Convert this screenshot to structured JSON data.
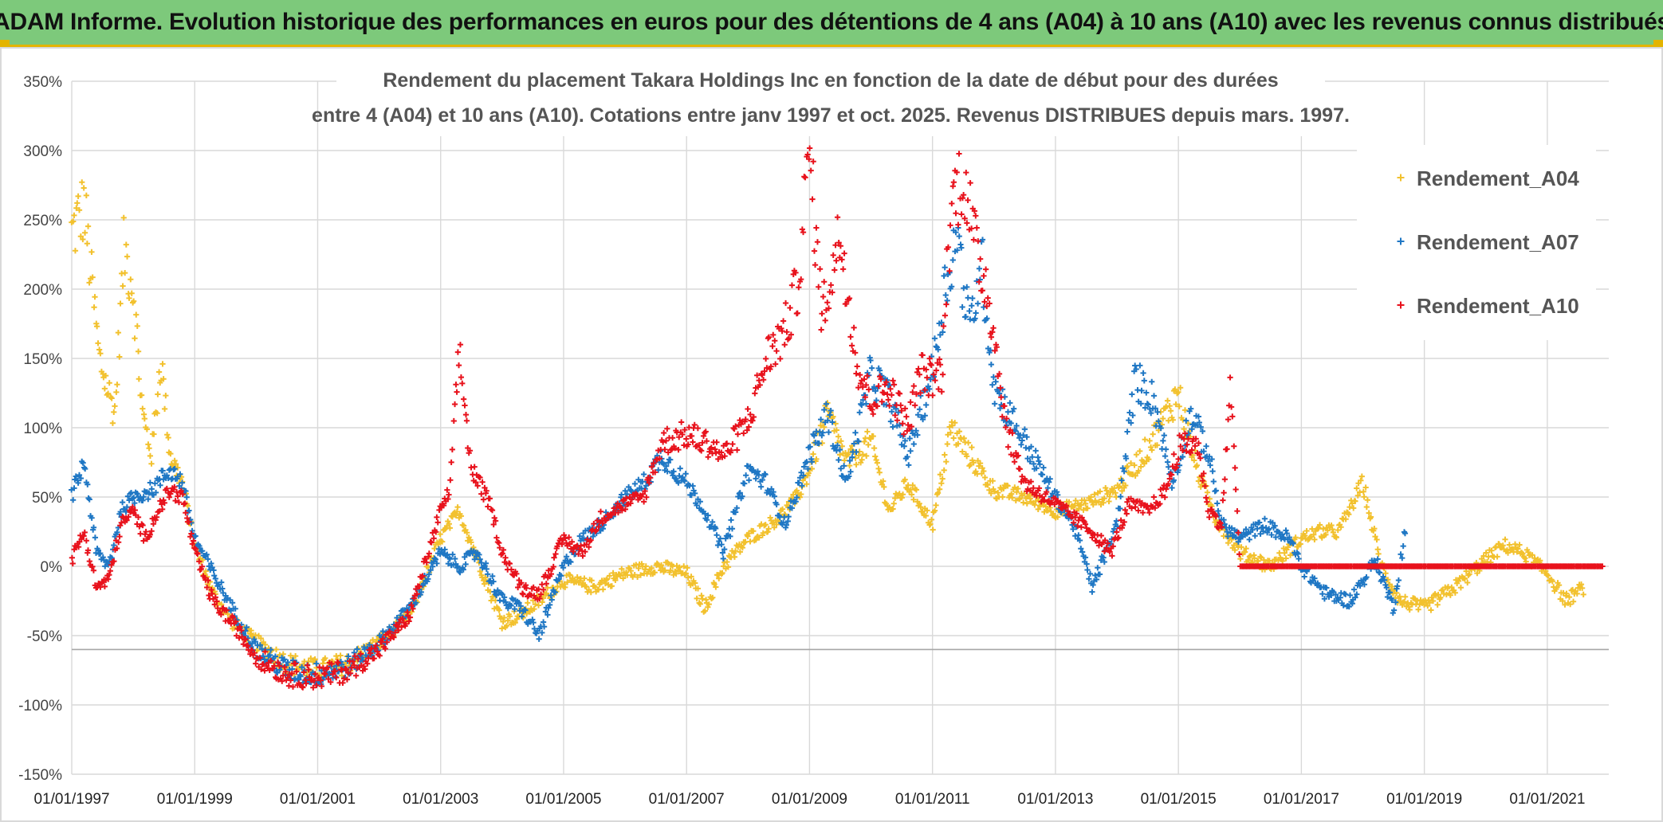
{
  "banner": {
    "title": "ADAM Informe. Evolution historique des performances en euros pour des détentions de 4 ans (A04) à 10 ans (A10) avec les revenus connus distribués"
  },
  "colors": {
    "banner_bg": "#7dc97b",
    "banner_accent": "#e3b400",
    "A04": "#f2c12e",
    "A07": "#1f77c4",
    "A10": "#e8121c",
    "grid": "#d9d9d9"
  },
  "chart_data": {
    "type": "scatter",
    "title_line1": "Rendement du placement Takara Holdings Inc en fonction de la date de début pour des durées",
    "title_line2": "entre 4 (A04) et 10 ans (A10). Cotations entre janv 1997 et oct. 2025. Revenus DISTRIBUES depuis mars. 1997.",
    "xlabel": "",
    "ylabel": "",
    "x_range": [
      "01/01/1997",
      "01/01/2022"
    ],
    "ylim": [
      -150,
      350
    ],
    "y_ticks": [
      "350%",
      "300%",
      "250%",
      "200%",
      "150%",
      "100%",
      "50%",
      "0%",
      "-50%",
      "-100%",
      "-150%"
    ],
    "y_tick_values": [
      350,
      300,
      250,
      200,
      150,
      100,
      50,
      0,
      -50,
      -100,
      -150
    ],
    "x_ticks": [
      "01/01/1997",
      "01/01/1999",
      "01/01/2001",
      "01/01/2003",
      "01/01/2005",
      "01/01/2007",
      "01/01/2009",
      "01/01/2011",
      "01/01/2013",
      "01/01/2015",
      "01/01/2017",
      "01/01/2019",
      "01/01/2021"
    ],
    "x_tick_years": [
      1997,
      1999,
      2001,
      2003,
      2005,
      2007,
      2009,
      2011,
      2013,
      2015,
      2017,
      2019,
      2021
    ],
    "grid": true,
    "legend_position": "top-right",
    "marker": "+",
    "series": [
      {
        "name": "Rendement_A04",
        "color": "#f2c12e",
        "x": [
          1997.0,
          1997.2,
          1997.45,
          1997.7,
          1997.85,
          1998.0,
          1998.15,
          1998.3,
          1998.45,
          1998.6,
          1998.8,
          1999.0,
          1999.3,
          1999.6,
          2000.0,
          2000.5,
          2001.0,
          2001.5,
          2002.0,
          2002.5,
          2003.0,
          2003.3,
          2003.6,
          2004.0,
          2004.3,
          2004.6,
          2005.0,
          2005.5,
          2006.0,
          2006.5,
          2007.0,
          2007.3,
          2007.6,
          2008.0,
          2008.5,
          2008.8,
          2009.0,
          2009.3,
          2009.6,
          2010.0,
          2010.3,
          2010.6,
          2011.0,
          2011.3,
          2011.6,
          2012.0,
          2012.5,
          2013.0,
          2013.5,
          2014.0,
          2014.5,
          2014.8,
          2015.0,
          2015.3,
          2015.6,
          2016.0,
          2016.5,
          2017.0,
          2017.3,
          2017.6,
          2018.0,
          2018.3,
          2018.6,
          2019.0,
          2019.5,
          2020.0,
          2020.3,
          2020.6,
          2021.0,
          2021.3,
          2021.6
        ],
        "values": [
          240,
          260,
          150,
          110,
          230,
          200,
          110,
          80,
          150,
          80,
          60,
          15,
          -20,
          -40,
          -55,
          -70,
          -75,
          -70,
          -55,
          -35,
          20,
          40,
          5,
          -40,
          -35,
          -25,
          -10,
          -15,
          -5,
          0,
          -5,
          -30,
          0,
          20,
          35,
          50,
          70,
          110,
          75,
          90,
          40,
          60,
          30,
          100,
          80,
          55,
          50,
          40,
          45,
          55,
          85,
          110,
          125,
          70,
          35,
          10,
          0,
          20,
          25,
          25,
          60,
          0,
          -25,
          -30,
          -15,
          5,
          15,
          10,
          -5,
          -25,
          -15
        ]
      },
      {
        "name": "Rendement_A07",
        "color": "#1f77c4",
        "x": [
          1997.0,
          1997.2,
          1997.4,
          1997.6,
          1997.8,
          1998.0,
          1998.3,
          1998.6,
          1998.8,
          1999.0,
          1999.3,
          1999.6,
          2000.0,
          2000.5,
          2001.0,
          2001.5,
          2002.0,
          2002.5,
          2003.0,
          2003.3,
          2003.6,
          2004.0,
          2004.3,
          2004.6,
          2005.0,
          2005.3,
          2005.6,
          2006.0,
          2006.3,
          2006.6,
          2007.0,
          2007.3,
          2007.6,
          2008.0,
          2008.3,
          2008.6,
          2009.0,
          2009.3,
          2009.6,
          2010.0,
          2010.3,
          2010.6,
          2011.0,
          2011.2,
          2011.4,
          2011.6,
          2011.8,
          2012.0,
          2012.5,
          2013.0,
          2013.3,
          2013.6,
          2014.0,
          2014.3,
          2014.6,
          2014.9,
          2015.2,
          2015.5,
          2015.7,
          2016.0,
          2016.4,
          2016.8,
          2017.0,
          2017.4,
          2017.8,
          2018.2,
          2018.5,
          2018.7
        ],
        "values": [
          50,
          75,
          10,
          0,
          40,
          50,
          55,
          70,
          60,
          20,
          -5,
          -30,
          -60,
          -75,
          -78,
          -72,
          -55,
          -30,
          10,
          0,
          10,
          -25,
          -30,
          -50,
          0,
          20,
          30,
          50,
          60,
          80,
          60,
          40,
          10,
          70,
          60,
          30,
          80,
          110,
          60,
          140,
          120,
          80,
          140,
          200,
          240,
          170,
          220,
          130,
          90,
          50,
          30,
          -15,
          30,
          135,
          120,
          60,
          110,
          80,
          30,
          20,
          30,
          20,
          0,
          -20,
          -25,
          5,
          -30,
          30
        ]
      },
      {
        "name": "Rendement_A10",
        "color": "#e8121c",
        "x": [
          1997.0,
          1997.2,
          1997.4,
          1997.6,
          1997.8,
          1998.0,
          1998.2,
          1998.4,
          1998.6,
          1998.8,
          1999.0,
          1999.3,
          1999.6,
          2000.0,
          2000.5,
          2001.0,
          2001.5,
          2002.0,
          2002.5,
          2003.0,
          2003.15,
          2003.3,
          2003.5,
          2003.8,
          2004.0,
          2004.3,
          2004.6,
          2005.0,
          2005.3,
          2005.6,
          2006.0,
          2006.3,
          2006.6,
          2007.0,
          2007.3,
          2007.6,
          2008.0,
          2008.3,
          2008.6,
          2008.8,
          2009.0,
          2009.2,
          2009.5,
          2009.8,
          2010.0,
          2010.3,
          2010.6,
          2010.8,
          2011.0,
          2011.15,
          2011.3,
          2011.5,
          2011.7,
          2011.9,
          2012.2,
          2012.5,
          2013.0,
          2013.3,
          2013.6,
          2013.9,
          2014.2,
          2014.5,
          2014.8,
          2015.0,
          2015.3,
          2015.5,
          2015.7,
          2015.85,
          2016.0,
          2016.5,
          2017.0,
          2017.5,
          2018.0,
          2018.5,
          2019.0,
          2019.5,
          2020.0,
          2020.5,
          2021.0,
          2021.5,
          2021.9
        ],
        "values": [
          5,
          25,
          -15,
          -10,
          30,
          40,
          20,
          40,
          55,
          50,
          10,
          -25,
          -40,
          -65,
          -78,
          -80,
          -75,
          -60,
          -35,
          40,
          55,
          155,
          70,
          45,
          10,
          -15,
          -20,
          20,
          10,
          35,
          45,
          50,
          90,
          95,
          90,
          80,
          105,
          150,
          170,
          200,
          300,
          180,
          240,
          140,
          120,
          130,
          100,
          140,
          135,
          140,
          260,
          285,
          230,
          200,
          100,
          60,
          45,
          35,
          25,
          10,
          45,
          40,
          55,
          85,
          90,
          40,
          30,
          130,
          0,
          0,
          0,
          0,
          0,
          0,
          0,
          0,
          0,
          0,
          0,
          0,
          0
        ]
      }
    ]
  }
}
